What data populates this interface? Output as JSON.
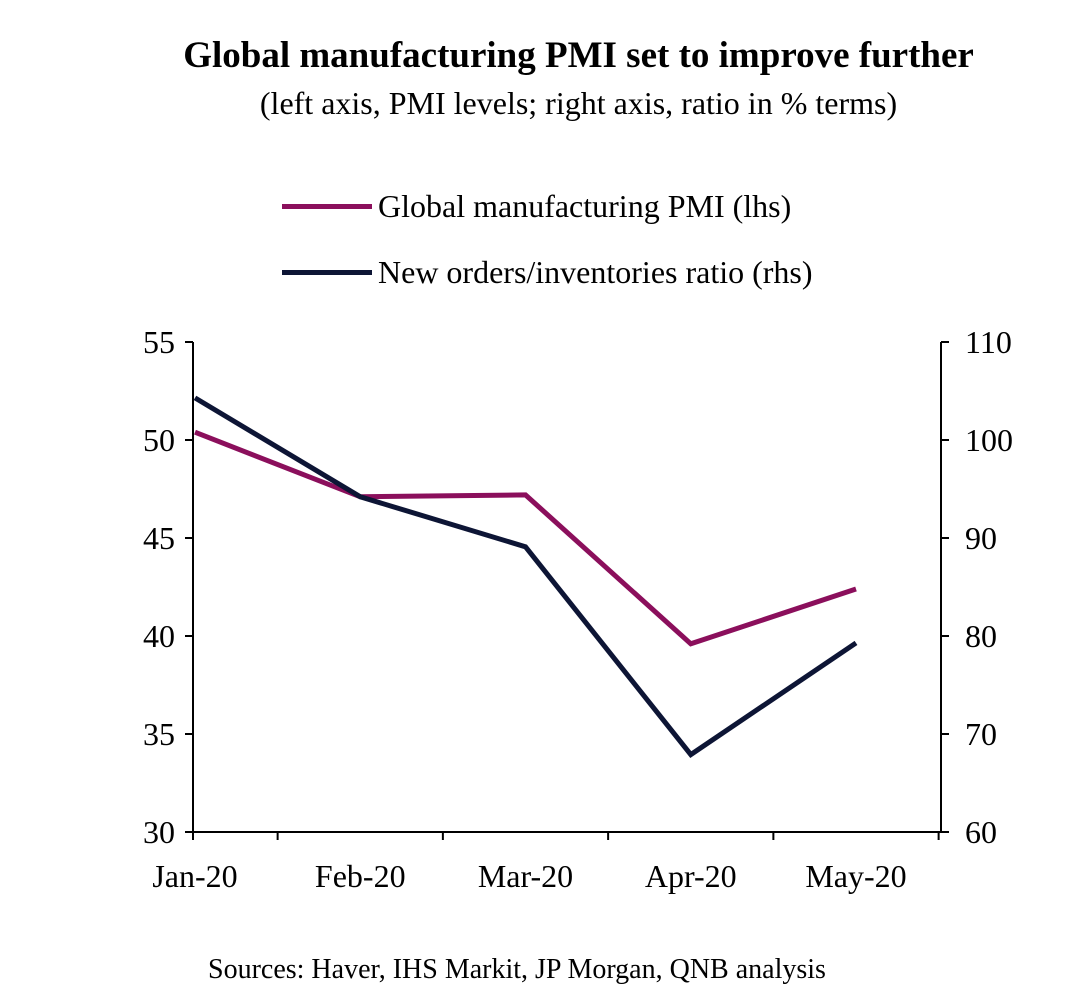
{
  "chart_data": {
    "type": "line",
    "title": "Global manufacturing PMI set to improve further",
    "subtitle": "(left axis, PMI levels; right axis, ratio in % terms)",
    "categories": [
      "Jan-20",
      "Feb-20",
      "Mar-20",
      "Apr-20",
      "May-20"
    ],
    "y_left": {
      "min": 30,
      "max": 55,
      "ticks": [
        55,
        50,
        45,
        40,
        35,
        30
      ]
    },
    "y_right": {
      "min": 60,
      "max": 110,
      "ticks": [
        110,
        100,
        90,
        80,
        70,
        60
      ]
    },
    "series": [
      {
        "name": "Global manufacturing PMI (lhs)",
        "axis": "left",
        "color": "#8b0f5c",
        "values": [
          50.4,
          47.1,
          47.2,
          39.6,
          42.4
        ]
      },
      {
        "name": "New orders/inventories ratio (rhs)",
        "axis": "right",
        "color": "#0d1535",
        "values": [
          104.3,
          94.2,
          89.1,
          67.9,
          79.3
        ]
      }
    ],
    "legend_position": "top-center",
    "grid": false
  },
  "source": "Sources: Haver, IHS Markit, JP Morgan, QNB analysis"
}
